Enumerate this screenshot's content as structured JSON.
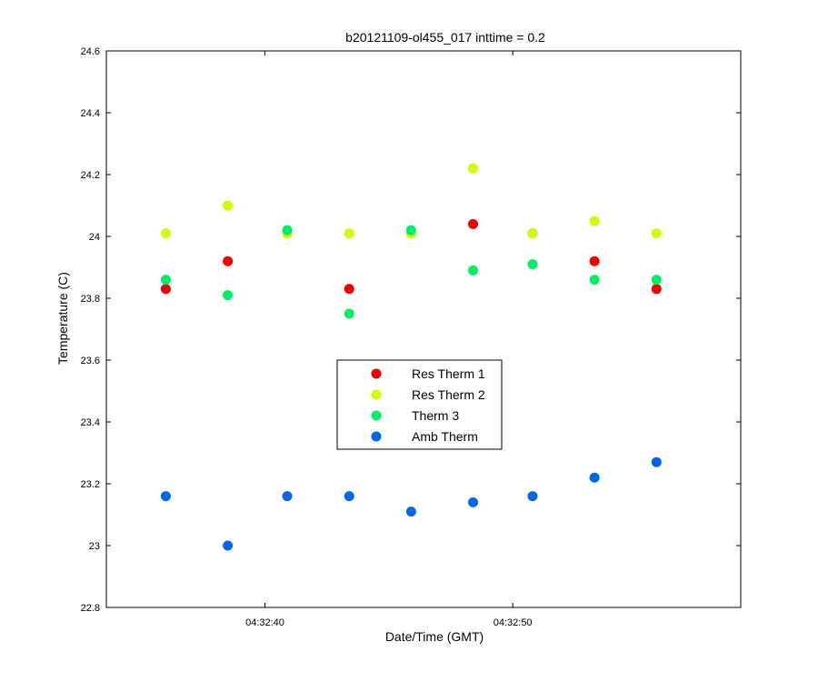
{
  "chart_data": {
    "type": "scatter",
    "title": "b20121109-ol455_017 inttime = 0.2",
    "xlabel": "Date/Time (GMT)",
    "ylabel": "Temperature (C)",
    "x_unit": "time (HH:MM:SS)",
    "xlim": [
      "04:32:33.6",
      "04:32:59.2"
    ],
    "ylim": [
      22.8,
      24.6
    ],
    "yticks": [
      22.8,
      23,
      23.2,
      23.4,
      23.6,
      23.8,
      24,
      24.2,
      24.4,
      24.6
    ],
    "ytick_labels": [
      "22.8",
      "23",
      "23.2",
      "23.4",
      "23.6",
      "23.8",
      "24",
      "24.2",
      "24.4",
      "24.6"
    ],
    "xticks": [
      "04:32:40",
      "04:32:50"
    ],
    "xtick_labels": [
      "04:32:40",
      "04:32:50"
    ],
    "x": [
      "04:32:36.0",
      "04:32:38.5",
      "04:32:40.9",
      "04:32:43.4",
      "04:32:45.9",
      "04:32:48.4",
      "04:32:50.8",
      "04:32:53.3",
      "04:32:55.8"
    ],
    "series": [
      {
        "name": "Res Therm 1",
        "color": "#ee0000",
        "values": [
          23.83,
          23.92,
          24.01,
          23.83,
          24.01,
          24.04,
          24.01,
          23.92,
          23.83
        ]
      },
      {
        "name": "Res Therm 2",
        "color": "#ccff00",
        "values": [
          24.01,
          24.1,
          24.01,
          24.01,
          24.01,
          24.22,
          24.01,
          24.05,
          24.01
        ]
      },
      {
        "name": "Therm 3",
        "color": "#00ee66",
        "values": [
          23.86,
          23.81,
          24.02,
          23.75,
          24.02,
          23.89,
          23.91,
          23.86,
          23.86
        ]
      },
      {
        "name": "Amb Therm",
        "color": "#0066ee",
        "values": [
          23.16,
          23.0,
          23.16,
          23.16,
          23.11,
          23.14,
          23.16,
          23.22,
          23.27
        ]
      }
    ],
    "legend_position": "center",
    "grid": false
  }
}
